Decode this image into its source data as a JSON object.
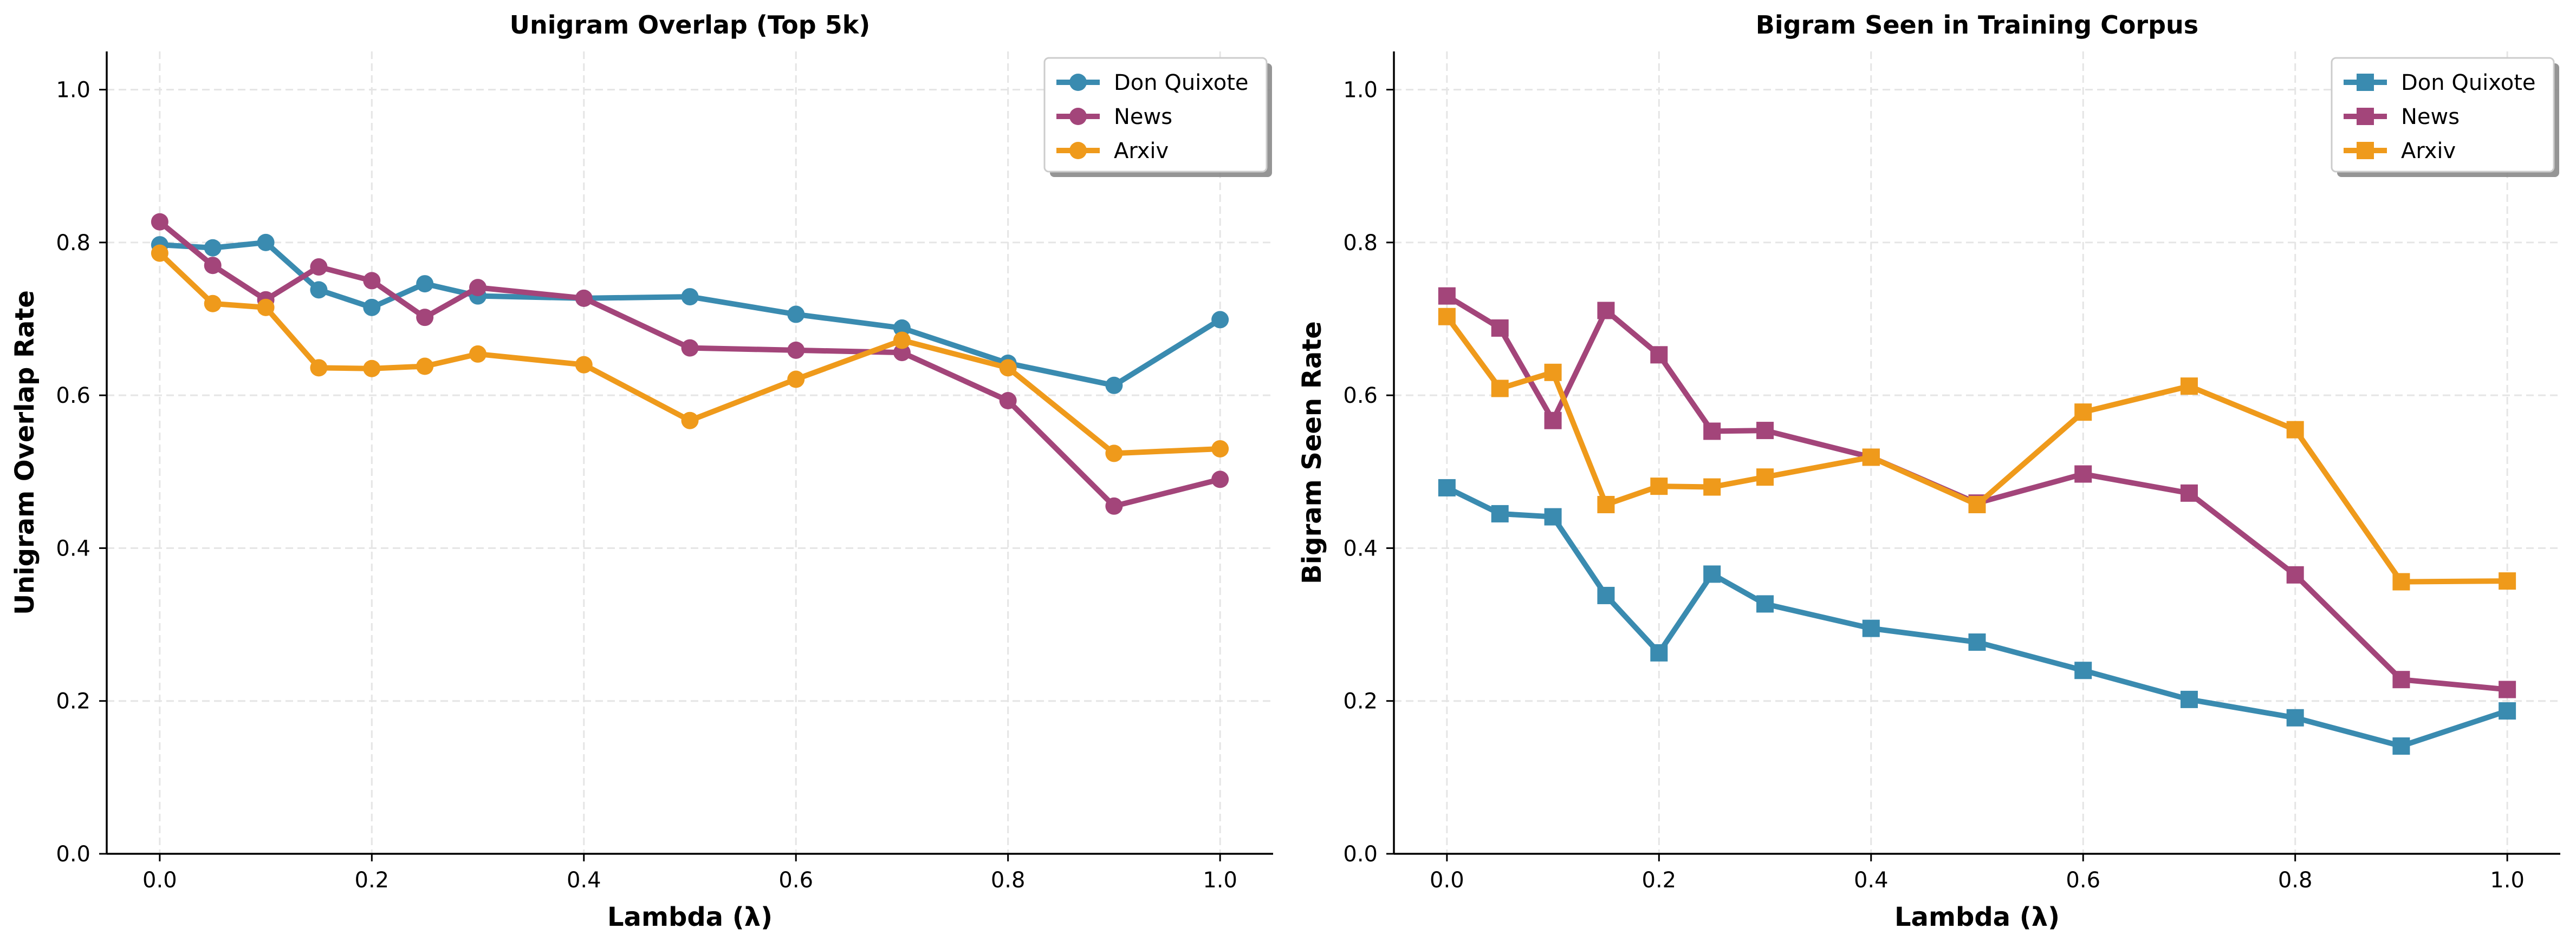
{
  "colors": {
    "don_quixote": "#3a8bb0",
    "news": "#a3457a",
    "arxiv": "#ef9a1b",
    "grid": "#e5e5e5",
    "axis": "#000000"
  },
  "chart_data": [
    {
      "type": "line",
      "title": "Unigram Overlap (Top 5k)",
      "xlabel": "Lambda (λ)",
      "ylabel": "Unigram Overlap Rate",
      "xlim": [
        -0.05,
        1.05
      ],
      "ylim": [
        0.0,
        1.05
      ],
      "xticks": [
        0.0,
        0.2,
        0.4,
        0.6,
        0.8,
        1.0
      ],
      "xtick_labels": [
        "0.0",
        "0.2",
        "0.4",
        "0.6",
        "0.8",
        "1.0"
      ],
      "yticks": [
        0.0,
        0.2,
        0.4,
        0.6,
        0.8,
        1.0
      ],
      "ytick_labels": [
        "0.0",
        "0.2",
        "0.4",
        "0.6",
        "0.8",
        "1.0"
      ],
      "grid": true,
      "marker": "circle",
      "legend_position": "top-right",
      "x": [
        0.0,
        0.05,
        0.1,
        0.15,
        0.2,
        0.25,
        0.3,
        0.4,
        0.5,
        0.6,
        0.7,
        0.8,
        0.9,
        1.0
      ],
      "series": [
        {
          "name": "Don Quixote",
          "color_key": "don_quixote",
          "values": [
            0.797,
            0.793,
            0.8,
            0.738,
            0.715,
            0.746,
            0.73,
            0.727,
            0.729,
            0.706,
            0.688,
            0.642,
            0.613,
            0.699
          ]
        },
        {
          "name": "News",
          "color_key": "news",
          "values": [
            0.827,
            0.77,
            0.725,
            0.768,
            0.75,
            0.702,
            0.741,
            0.727,
            0.662,
            0.659,
            0.656,
            0.593,
            0.455,
            0.49
          ]
        },
        {
          "name": "Arxiv",
          "color_key": "arxiv",
          "values": [
            0.786,
            0.72,
            0.715,
            0.636,
            0.635,
            0.638,
            0.654,
            0.64,
            0.567,
            0.621,
            0.672,
            0.636,
            0.524,
            0.53
          ]
        }
      ]
    },
    {
      "type": "line",
      "title": "Bigram Seen in Training Corpus",
      "xlabel": "Lambda (λ)",
      "ylabel": "Bigram Seen Rate",
      "xlim": [
        -0.05,
        1.05
      ],
      "ylim": [
        0.0,
        1.05
      ],
      "xticks": [
        0.0,
        0.2,
        0.4,
        0.6,
        0.8,
        1.0
      ],
      "xtick_labels": [
        "0.0",
        "0.2",
        "0.4",
        "0.6",
        "0.8",
        "1.0"
      ],
      "yticks": [
        0.0,
        0.2,
        0.4,
        0.6,
        0.8,
        1.0
      ],
      "ytick_labels": [
        "0.0",
        "0.2",
        "0.4",
        "0.6",
        "0.8",
        "1.0"
      ],
      "grid": true,
      "marker": "square",
      "legend_position": "top-right",
      "x": [
        0.0,
        0.05,
        0.1,
        0.15,
        0.2,
        0.25,
        0.3,
        0.4,
        0.5,
        0.6,
        0.7,
        0.8,
        0.9,
        1.0
      ],
      "series": [
        {
          "name": "Don Quixote",
          "color_key": "don_quixote",
          "values": [
            0.479,
            0.445,
            0.441,
            0.338,
            0.263,
            0.366,
            0.327,
            0.295,
            0.277,
            0.24,
            0.202,
            0.178,
            0.141,
            0.187
          ]
        },
        {
          "name": "News",
          "color_key": "news",
          "values": [
            0.73,
            0.688,
            0.567,
            0.711,
            0.653,
            0.553,
            0.554,
            0.519,
            0.459,
            0.497,
            0.472,
            0.365,
            0.228,
            0.215
          ]
        },
        {
          "name": "Arxiv",
          "color_key": "arxiv",
          "values": [
            0.703,
            0.609,
            0.63,
            0.457,
            0.481,
            0.48,
            0.493,
            0.519,
            0.457,
            0.578,
            0.612,
            0.555,
            0.356,
            0.357
          ]
        }
      ]
    }
  ]
}
